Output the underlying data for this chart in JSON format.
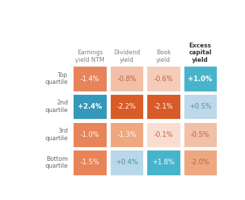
{
  "col_headers": [
    "Earnings\nyield NTM",
    "Dividend\nyield",
    "Book\nyield",
    "Excess\ncapital\nyield"
  ],
  "col_headers_bold": [
    false,
    false,
    false,
    true
  ],
  "row_headers": [
    "Top\nquartile",
    "2nd\nquartile",
    "3rd\nquartile",
    "Bottom\nquartile"
  ],
  "row_headers_bold": [
    false,
    false,
    false,
    false
  ],
  "values": [
    [
      "-1.4%",
      "-0.8%",
      "-0.6%",
      "+1.0%"
    ],
    [
      "+2.4%",
      "-2.2%",
      "-2.1%",
      "+0.5%"
    ],
    [
      "-1.0%",
      "-1.3%",
      "-0.1%",
      "-0.5%"
    ],
    [
      "-1.5%",
      "+0.4%",
      "+1.8%",
      "-2.0%"
    ]
  ],
  "colors": [
    [
      "#E8845A",
      "#F2BFA8",
      "#F5CCBA",
      "#48B4CC"
    ],
    [
      "#3498B8",
      "#D95C28",
      "#D75A28",
      "#BDD8E8"
    ],
    [
      "#E8845A",
      "#EDA880",
      "#F8DDD0",
      "#F2BFA8"
    ],
    [
      "#E8845A",
      "#B8D8E8",
      "#48B4CC",
      "#EDA880"
    ]
  ],
  "text_colors": [
    [
      "#ffffff",
      "#C06040",
      "#C06040",
      "#ffffff"
    ],
    [
      "#ffffff",
      "#ffffff",
      "#ffffff",
      "#5090A8"
    ],
    [
      "#ffffff",
      "#ffffff",
      "#C06040",
      "#C06040"
    ],
    [
      "#ffffff",
      "#5090A8",
      "#ffffff",
      "#C06040"
    ]
  ],
  "value_bold": [
    [
      false,
      false,
      false,
      true
    ],
    [
      true,
      false,
      false,
      false
    ],
    [
      false,
      false,
      false,
      false
    ],
    [
      false,
      false,
      false,
      false
    ]
  ],
  "background_color": "#ffffff",
  "header_color": "#808080",
  "row_header_color": "#666666",
  "last_col_header_color": "#333333"
}
